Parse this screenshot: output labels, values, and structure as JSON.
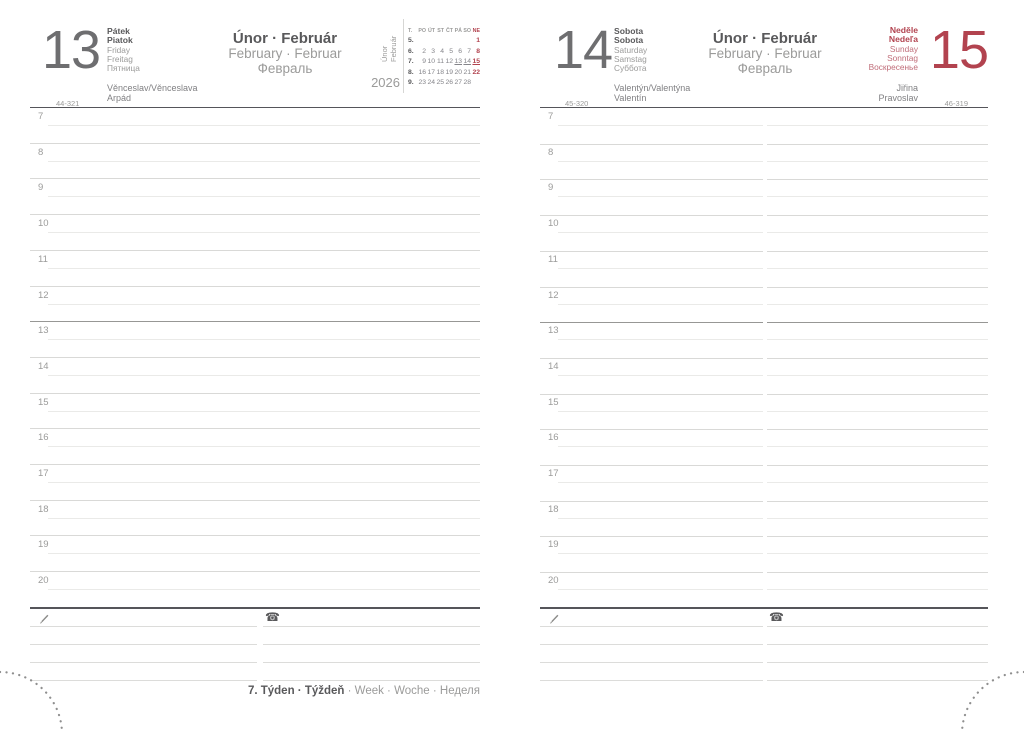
{
  "year": "2026",
  "month_header": {
    "line1": "Únor · Február",
    "line2": "February · Februar",
    "line3": "Февраль"
  },
  "rotated_month": [
    "Únor",
    "Február"
  ],
  "hours": [
    "7",
    "8",
    "9",
    "10",
    "11",
    "12",
    "13",
    "14",
    "15",
    "16",
    "17",
    "18",
    "19",
    "20"
  ],
  "left_page": {
    "date": "13",
    "day_names": [
      "Pátek",
      "Piatok",
      "Friday",
      "Freitag",
      "Пятница"
    ],
    "day_of_year": "44-321",
    "name_days": [
      "Věnceslav/Věnceslava",
      "Arpád"
    ],
    "mini_calendar": {
      "corner": "T.",
      "day_headers": [
        "PO",
        "ÚT",
        "ST",
        "ČT",
        "PÁ",
        "SO",
        "NE"
      ],
      "weeks": [
        {
          "num": "5.",
          "days": [
            "",
            "",
            "",
            "",
            "",
            "",
            "1"
          ]
        },
        {
          "num": "6.",
          "days": [
            "2",
            "3",
            "4",
            "5",
            "6",
            "7",
            "8"
          ]
        },
        {
          "num": "7.",
          "days": [
            "9",
            "10",
            "11",
            "12",
            "13",
            "14",
            "15"
          ]
        },
        {
          "num": "8.",
          "days": [
            "16",
            "17",
            "18",
            "19",
            "20",
            "21",
            "22"
          ]
        },
        {
          "num": "9.",
          "days": [
            "23",
            "24",
            "25",
            "26",
            "27",
            "28",
            ""
          ]
        }
      ],
      "sunday_dates": [
        "1",
        "8",
        "15",
        "22"
      ],
      "underlined_dates": [
        "13",
        "14",
        "15"
      ]
    }
  },
  "right_page": {
    "saturday": {
      "date": "14",
      "day_names": [
        "Sobota",
        "Sobota",
        "Saturday",
        "Samstag",
        "Суббота"
      ],
      "day_of_year": "45-320",
      "name_days": [
        "Valentýn/Valentýna",
        "Valentín"
      ]
    },
    "sunday": {
      "date": "15",
      "day_names": [
        "Neděle",
        "Nedeľa",
        "Sunday",
        "Sonntag",
        "Воскресенье"
      ],
      "day_of_year": "46-319",
      "name_days": [
        "Jiřina",
        "Pravoslav"
      ]
    }
  },
  "footer": {
    "bold": "7. Týden · Týždeň",
    "light": " · Week · Woche · Неделя"
  },
  "icons": {
    "phone": "☎",
    "pencil": "pencil-icon"
  },
  "colors": {
    "dark_text": "#59595b",
    "light_text": "#9b9b9a",
    "red": "#b2434f",
    "light_red": "#c06e7a",
    "hour_line": "#d9d9d7",
    "half_hour_line": "#eaeae8",
    "dark_separator": "#55555a"
  }
}
